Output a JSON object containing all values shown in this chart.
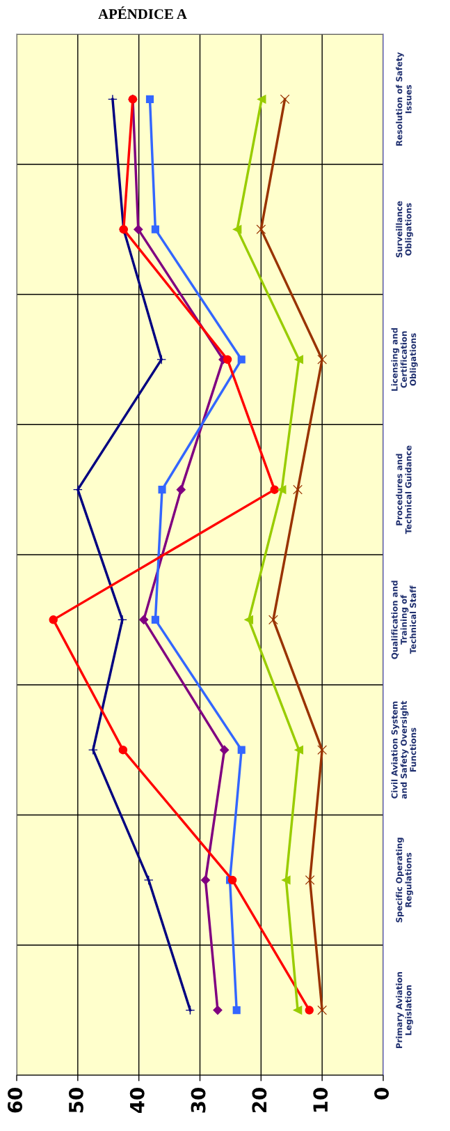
{
  "chart_data": {
    "type": "line",
    "title": "APÉNDICE A",
    "orientation": "horizontal",
    "categories": [
      "Resolution of Safety\nIssues",
      "Surveillance\nObligations",
      "Licensing and\nCertification\nObligations",
      "Procedures and\nTechnical Guidance",
      "Qualification and\nTraining of\nTechnical Staff",
      "Civil Aviation System\nand Safety Oversight\nFunctions",
      "Specific Operating\nRegulations",
      "Primary Aviation\nLegislation"
    ],
    "series": [
      {
        "color": "#000080",
        "marker": "plus",
        "values": [
          44.3,
          42.5,
          36.3,
          50.0,
          42.7,
          47.5,
          38.4,
          31.6
        ]
      },
      {
        "color": "#800080",
        "marker": "diamond",
        "values": [
          41.0,
          40.1,
          26.2,
          33.1,
          39.2,
          26.0,
          29.1,
          27.1
        ]
      },
      {
        "color": "#3366ff",
        "marker": "square",
        "values": [
          38.2,
          37.3,
          23.2,
          36.2,
          37.3,
          23.2,
          25.1,
          24.0
        ]
      },
      {
        "color": "#ff0000",
        "marker": "circle",
        "values": [
          41.0,
          42.5,
          25.5,
          17.8,
          54.0,
          42.6,
          24.7,
          12.1
        ]
      },
      {
        "color": "#99cc00",
        "marker": "triangle",
        "values": [
          19.9,
          23.9,
          13.8,
          16.6,
          22.0,
          13.8,
          15.9,
          14.0
        ]
      },
      {
        "color": "#993300",
        "marker": "cross",
        "values": [
          16.1,
          20.0,
          10.0,
          14.0,
          18.0,
          10.0,
          12.0,
          10.0
        ]
      }
    ],
    "xlim": [
      60,
      0
    ],
    "xticks": [
      60,
      50,
      40,
      30,
      20,
      10,
      0
    ],
    "grid": true
  }
}
